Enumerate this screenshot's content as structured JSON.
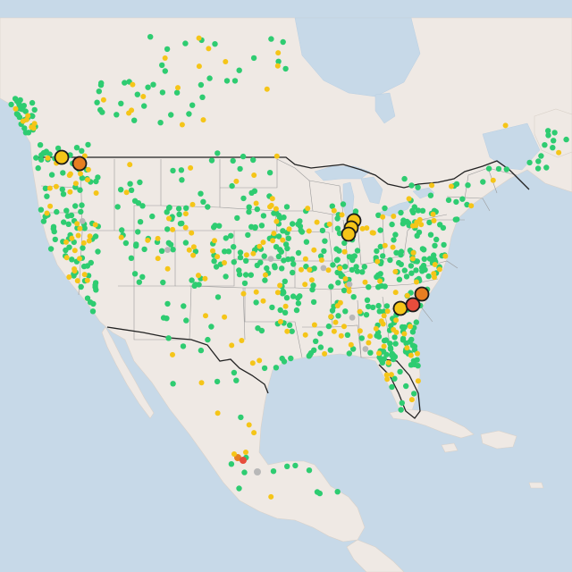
{
  "map": {
    "colors": {
      "water": "#c7d9e8",
      "land": "#efe9e4",
      "land_edge": "#d9d1c9",
      "state_border": "#9a9a9a",
      "country_border": "#222222",
      "green": "#2ecc71",
      "yellow": "#f5c518",
      "orange": "#e67e22",
      "red": "#e74c3c",
      "gray": "#b8b8b8"
    },
    "levels": [
      "good",
      "moderate",
      "unhealthy-for-sensitive-groups",
      "unhealthy",
      "no-data"
    ],
    "sites": {
      "green_count": 620,
      "yellow_count": 210,
      "gray_count": 8
    },
    "large_markers": [
      {
        "level": "moderate"
      },
      {
        "level": "unhealthy-for-sensitive-groups"
      },
      {
        "level": "moderate"
      },
      {
        "level": "moderate"
      },
      {
        "level": "moderate"
      },
      {
        "level": "moderate"
      },
      {
        "level": "unhealthy"
      },
      {
        "level": "unhealthy-for-sensitive-groups"
      }
    ]
  }
}
